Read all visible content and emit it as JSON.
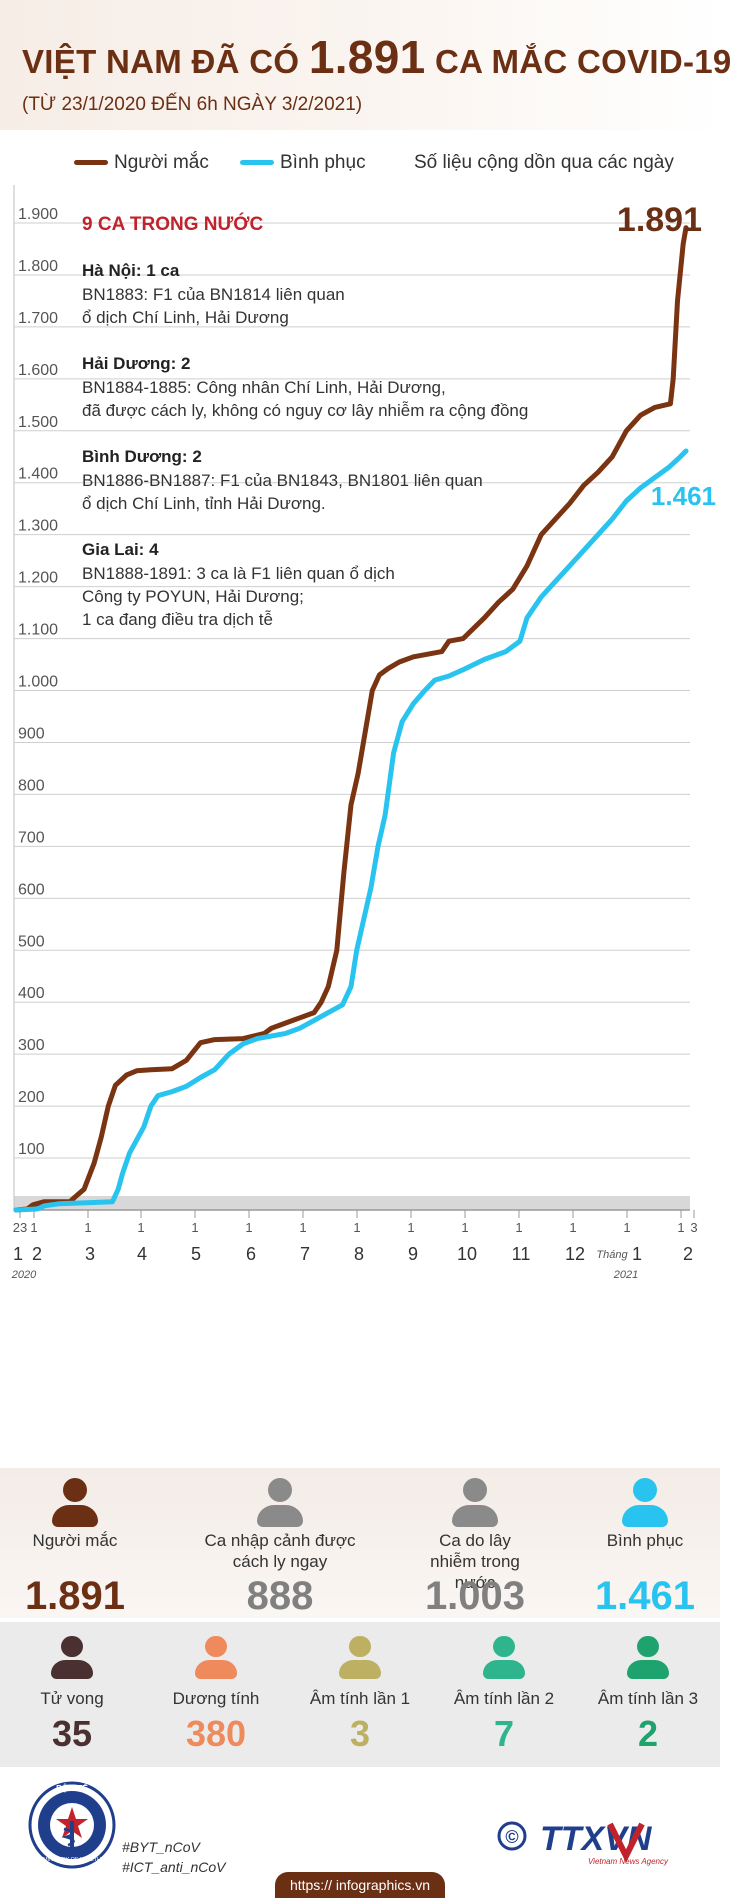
{
  "header": {
    "title_prefix": "VIỆT NAM ĐÃ CÓ",
    "title_number": "1.891",
    "title_suffix": "CA MẮC COVID-19",
    "subtitle": "(TỪ 23/1/2020 ĐẾN 6h NGÀY 3/2/2021)"
  },
  "legend": {
    "cases": "Người mắc",
    "recovered": "Bình phục",
    "note": "Số liệu cộng dồn qua các ngày"
  },
  "colors": {
    "cases": "#7a3411",
    "recovered": "#29c3f0",
    "accent_red": "#c0232c",
    "brown_text": "#6b2f14"
  },
  "annotation": {
    "heading": "9 CA TRONG NƯỚC",
    "blocks": [
      {
        "title": "Hà Nội: 1 ca",
        "lines": [
          "BN1883: F1 của BN1814 liên quan",
          "ổ dịch Chí Linh, Hải Dương"
        ]
      },
      {
        "title": "Hải Dương: 2",
        "lines": [
          "BN1884-1885: Công nhân Chí Linh, Hải Dương,",
          "đã được cách ly, không có nguy cơ lây nhiễm ra cộng đồng"
        ]
      },
      {
        "title": "Bình Dương: 2",
        "lines": [
          "BN1886-BN1887: F1 của BN1843, BN1801 liên quan",
          "ổ dịch Chí Linh, tỉnh Hải Dương."
        ]
      },
      {
        "title": "Gia Lai: 4",
        "lines": [
          "BN1888-1891: 3 ca là F1 liên quan ổ dịch",
          "Công ty POYUN, Hải Dương;",
          "1 ca đang điều tra dịch tễ"
        ]
      }
    ]
  },
  "chart_data": {
    "type": "line",
    "title": "",
    "xlabel": "",
    "ylabel": "",
    "ylim": [
      0,
      1900
    ],
    "y_ticks": [
      "100",
      "200",
      "300",
      "400",
      "500",
      "600",
      "700",
      "800",
      "900",
      "1.000",
      "1.100",
      "1.200",
      "1.300",
      "1.400",
      "1.500",
      "1.600",
      "1.700",
      "1.800",
      "1.900"
    ],
    "x_ticks_day": [
      "23",
      "1",
      "1",
      "1",
      "1",
      "1",
      "1",
      "1",
      "1",
      "1",
      "1",
      "1",
      "1",
      "1",
      "3"
    ],
    "x_ticks_month": [
      "1",
      "2",
      "3",
      "4",
      "5",
      "6",
      "7",
      "8",
      "9",
      "10",
      "11",
      "12",
      "1",
      "2"
    ],
    "x_year_2020": "2020",
    "x_year_2021": "2021",
    "x_month_word": "Tháng",
    "end_labels": {
      "cases": "1.891",
      "recovered": "1.461"
    },
    "series": [
      {
        "name": "Người mắc",
        "color": "#7a3411",
        "points": [
          [
            0,
            0
          ],
          [
            8,
            2
          ],
          [
            12,
            10
          ],
          [
            20,
            16
          ],
          [
            38,
            16
          ],
          [
            42,
            26
          ],
          [
            48,
            40
          ],
          [
            55,
            90
          ],
          [
            60,
            140
          ],
          [
            65,
            200
          ],
          [
            70,
            240
          ],
          [
            78,
            260
          ],
          [
            85,
            268
          ],
          [
            95,
            270
          ],
          [
            110,
            272
          ],
          [
            120,
            288
          ],
          [
            130,
            322
          ],
          [
            140,
            328
          ],
          [
            160,
            330
          ],
          [
            175,
            340
          ],
          [
            180,
            350
          ],
          [
            185,
            355
          ],
          [
            190,
            360
          ],
          [
            200,
            370
          ],
          [
            210,
            380
          ],
          [
            215,
            400
          ],
          [
            220,
            430
          ],
          [
            226,
            500
          ],
          [
            231,
            650
          ],
          [
            236,
            780
          ],
          [
            241,
            840
          ],
          [
            246,
            920
          ],
          [
            251,
            1000
          ],
          [
            256,
            1030
          ],
          [
            262,
            1042
          ],
          [
            270,
            1055
          ],
          [
            280,
            1065
          ],
          [
            290,
            1070
          ],
          [
            300,
            1075
          ],
          [
            305,
            1095
          ],
          [
            315,
            1100
          ],
          [
            330,
            1140
          ],
          [
            340,
            1170
          ],
          [
            350,
            1195
          ],
          [
            360,
            1240
          ],
          [
            370,
            1300
          ],
          [
            380,
            1330
          ],
          [
            390,
            1360
          ],
          [
            400,
            1395
          ],
          [
            410,
            1420
          ],
          [
            420,
            1450
          ],
          [
            430,
            1500
          ],
          [
            440,
            1530
          ],
          [
            450,
            1545
          ],
          [
            461,
            1552
          ],
          [
            463,
            1600
          ],
          [
            466,
            1750
          ],
          [
            470,
            1860
          ],
          [
            472,
            1891
          ]
        ]
      },
      {
        "name": "Bình phục",
        "color": "#29c3f0",
        "points": [
          [
            0,
            0
          ],
          [
            15,
            2
          ],
          [
            20,
            8
          ],
          [
            30,
            12
          ],
          [
            50,
            14
          ],
          [
            68,
            16
          ],
          [
            72,
            40
          ],
          [
            75,
            70
          ],
          [
            80,
            110
          ],
          [
            90,
            160
          ],
          [
            95,
            200
          ],
          [
            100,
            220
          ],
          [
            110,
            228
          ],
          [
            120,
            238
          ],
          [
            130,
            255
          ],
          [
            140,
            270
          ],
          [
            150,
            300
          ],
          [
            160,
            320
          ],
          [
            170,
            330
          ],
          [
            180,
            335
          ],
          [
            190,
            340
          ],
          [
            200,
            350
          ],
          [
            210,
            365
          ],
          [
            220,
            380
          ],
          [
            230,
            395
          ],
          [
            236,
            430
          ],
          [
            240,
            500
          ],
          [
            245,
            560
          ],
          [
            250,
            620
          ],
          [
            255,
            700
          ],
          [
            260,
            760
          ],
          [
            266,
            880
          ],
          [
            272,
            940
          ],
          [
            280,
            975
          ],
          [
            288,
            1000
          ],
          [
            295,
            1020
          ],
          [
            305,
            1028
          ],
          [
            315,
            1040
          ],
          [
            330,
            1060
          ],
          [
            345,
            1075
          ],
          [
            355,
            1095
          ],
          [
            360,
            1140
          ],
          [
            370,
            1180
          ],
          [
            380,
            1210
          ],
          [
            390,
            1240
          ],
          [
            400,
            1270
          ],
          [
            410,
            1300
          ],
          [
            420,
            1330
          ],
          [
            430,
            1365
          ],
          [
            440,
            1390
          ],
          [
            450,
            1410
          ],
          [
            460,
            1430
          ],
          [
            468,
            1450
          ],
          [
            472,
            1461
          ]
        ]
      }
    ]
  },
  "stats_main": [
    {
      "label": "Người mắc",
      "value": "1.891",
      "color": "#6b2f14"
    },
    {
      "label": "Ca nhập cảnh được cách ly ngay",
      "value": "888",
      "color": "#808080"
    },
    {
      "label": "Ca do lây nhiễm trong nước",
      "value": "1.003",
      "color": "#808080"
    },
    {
      "label": "Bình phục",
      "value": "1.461",
      "color": "#29c3f0"
    }
  ],
  "stats_secondary": [
    {
      "label": "Tử vong",
      "value": "35",
      "color": "#4a3030"
    },
    {
      "label": "Dương tính",
      "value": "380",
      "color": "#ef8a5c"
    },
    {
      "label": "Âm tính lần 1",
      "value": "3",
      "color": "#bdb063"
    },
    {
      "label": "Âm tính lần 2",
      "value": "7",
      "color": "#2eb58e"
    },
    {
      "label": "Âm tính lần 3",
      "value": "2",
      "color": "#1fa36e"
    }
  ],
  "footer": {
    "ministry_top": "BỘ Y TẾ",
    "ministry_bottom": "MINISTRY OF HEALTH",
    "hashtag1": "#BYT_nCoV",
    "hashtag2": "#ICT_anti_nCoV",
    "copyright_symbol": "©",
    "agency_logo": "TTXVN",
    "agency_name": "Vietnam News Agency",
    "url": "https:// infographics.vn"
  }
}
